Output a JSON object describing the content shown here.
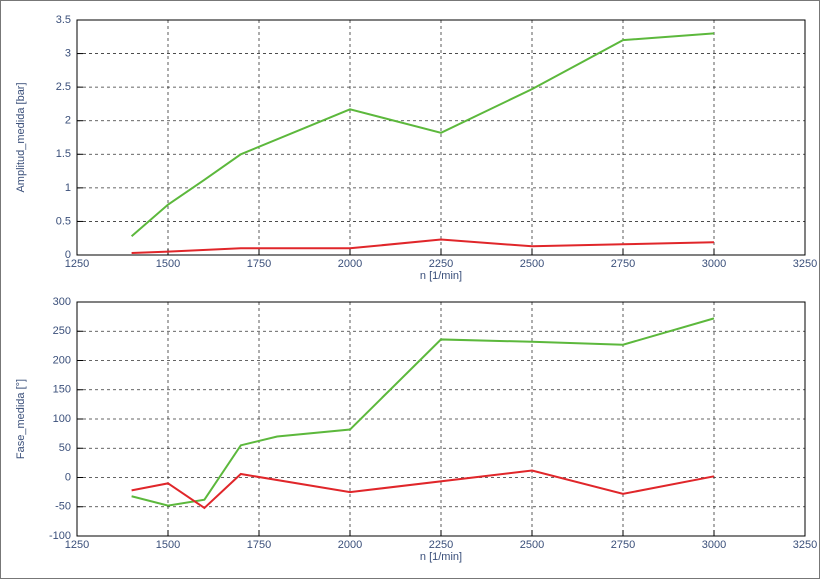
{
  "chart_data": [
    {
      "type": "line",
      "ylabel": "Amplitud_medida [bar]",
      "xlabel": "n [1/min]",
      "xlim": [
        1250,
        3250
      ],
      "xticks": [
        1250,
        1500,
        1750,
        2000,
        2250,
        2500,
        2750,
        3000,
        3250
      ],
      "ylim": [
        0,
        3.5
      ],
      "yticks": [
        0,
        0.5,
        1,
        1.5,
        2,
        2.5,
        3,
        3.5
      ],
      "grid": true,
      "series": [
        {
          "color": "#5cb83c",
          "x": [
            1400,
            1500,
            1600,
            1700,
            2000,
            2250,
            2500,
            2750,
            3000
          ],
          "values": [
            0.28,
            0.75,
            1.12,
            1.5,
            2.17,
            1.82,
            2.47,
            3.2,
            3.3
          ]
        },
        {
          "color": "#e0262a",
          "x": [
            1400,
            1500,
            1700,
            2000,
            2250,
            2500,
            2750,
            3000
          ],
          "values": [
            0.03,
            0.05,
            0.1,
            0.1,
            0.23,
            0.13,
            0.16,
            0.19
          ]
        }
      ]
    },
    {
      "type": "line",
      "ylabel": "Fase_medida [°]",
      "xlabel": "n [1/min]",
      "xlim": [
        1250,
        3250
      ],
      "xticks": [
        1250,
        1500,
        1750,
        2000,
        2250,
        2500,
        2750,
        3000,
        3250
      ],
      "ylim": [
        -100,
        300
      ],
      "yticks": [
        -100,
        -50,
        0,
        50,
        100,
        150,
        200,
        250,
        300
      ],
      "grid": true,
      "series": [
        {
          "color": "#5cb83c",
          "x": [
            1400,
            1500,
            1600,
            1700,
            1800,
            2000,
            2250,
            2500,
            2750,
            3000
          ],
          "values": [
            -32,
            -48,
            -38,
            55,
            70,
            82,
            236,
            232,
            227,
            272
          ]
        },
        {
          "color": "#e0262a",
          "x": [
            1400,
            1500,
            1600,
            1700,
            2000,
            2500,
            2750,
            3000
          ],
          "values": [
            -22,
            -10,
            -52,
            6,
            -25,
            12,
            -28,
            2
          ]
        }
      ]
    }
  ]
}
